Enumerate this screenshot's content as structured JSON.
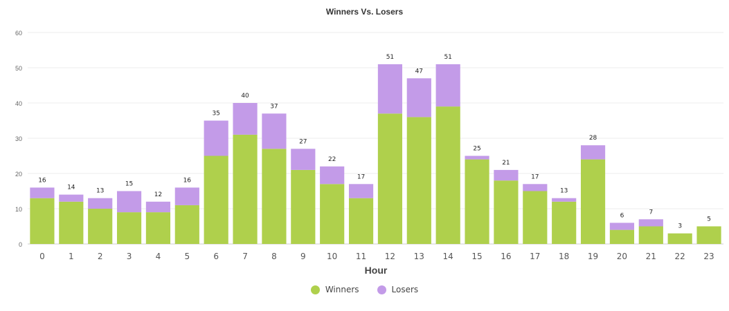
{
  "chart_data": {
    "type": "bar",
    "stacked": true,
    "title": "Winners Vs. Losers",
    "xlabel": "Hour",
    "ylabel": "",
    "ylim": [
      0,
      60
    ],
    "yticks": [
      0,
      10,
      20,
      30,
      40,
      50,
      60
    ],
    "grid": true,
    "legend_position": "bottom-center",
    "categories": [
      "0",
      "1",
      "2",
      "3",
      "4",
      "5",
      "6",
      "7",
      "8",
      "9",
      "10",
      "11",
      "12",
      "13",
      "14",
      "15",
      "16",
      "17",
      "18",
      "19",
      "20",
      "21",
      "22",
      "23"
    ],
    "series": [
      {
        "name": "Winners",
        "color": "#afd04c",
        "values": [
          13,
          12,
          10,
          9,
          9,
          11,
          25,
          31,
          27,
          21,
          17,
          13,
          37,
          36,
          39,
          24,
          18,
          15,
          12,
          24,
          4,
          5,
          3,
          5
        ]
      },
      {
        "name": "Losers",
        "color": "#c39be8",
        "values": [
          3,
          2,
          3,
          6,
          3,
          5,
          10,
          9,
          10,
          6,
          5,
          4,
          14,
          11,
          12,
          1,
          3,
          2,
          1,
          4,
          2,
          2,
          0,
          0
        ]
      }
    ],
    "totals": [
      16,
      14,
      13,
      15,
      12,
      16,
      35,
      40,
      37,
      27,
      22,
      17,
      51,
      47,
      51,
      25,
      21,
      17,
      13,
      28,
      6,
      7,
      3,
      5
    ]
  }
}
